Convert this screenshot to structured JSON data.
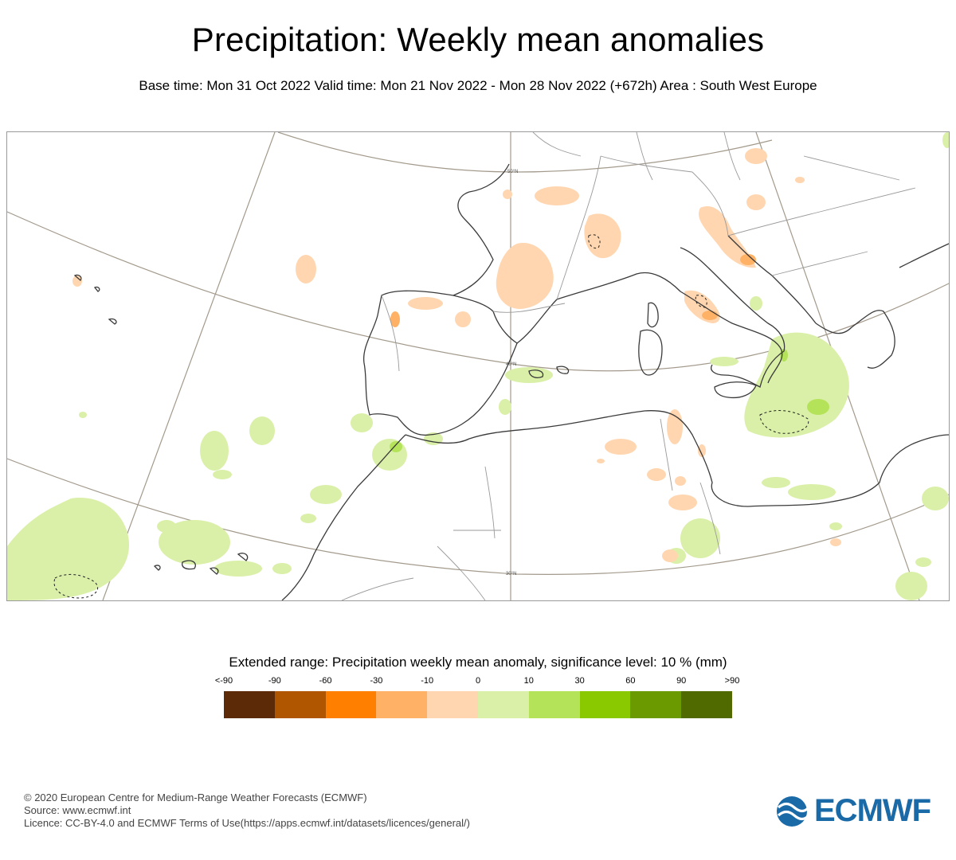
{
  "title": "Precipitation: Weekly mean anomalies",
  "subtitle": "Base time: Mon 31 Oct 2022 Valid time: Mon 21 Nov 2022 - Mon 28 Nov 2022 (+672h) Area : South West Europe",
  "map": {
    "lat_labels": [
      "50°N",
      "40°N",
      "30°N"
    ]
  },
  "legend": {
    "title": "Extended range: Precipitation weekly mean anomaly, significance level: 10 % (mm)",
    "labels": [
      "<-90",
      "-90",
      "-60",
      "-30",
      "-10",
      "0",
      "10",
      "30",
      "60",
      "90",
      ">90"
    ],
    "colors": [
      "#5c2a06",
      "#b05500",
      "#ff8000",
      "#ffb266",
      "#ffd6b0",
      "#daf0a8",
      "#b4e35a",
      "#8ac800",
      "#6a9a00",
      "#506a00"
    ]
  },
  "footer": {
    "copyright": "© 2020 European Centre for Medium-Range Weather Forecasts (ECMWF)",
    "source": "Source: www.ecmwf.int",
    "licence": "Licence: CC-BY-4.0 and ECMWF Terms of Use(https://apps.ecmwf.int/datasets/licences/general/)"
  },
  "logo": {
    "text": "ECMWF",
    "color": "#1b6aa8"
  }
}
